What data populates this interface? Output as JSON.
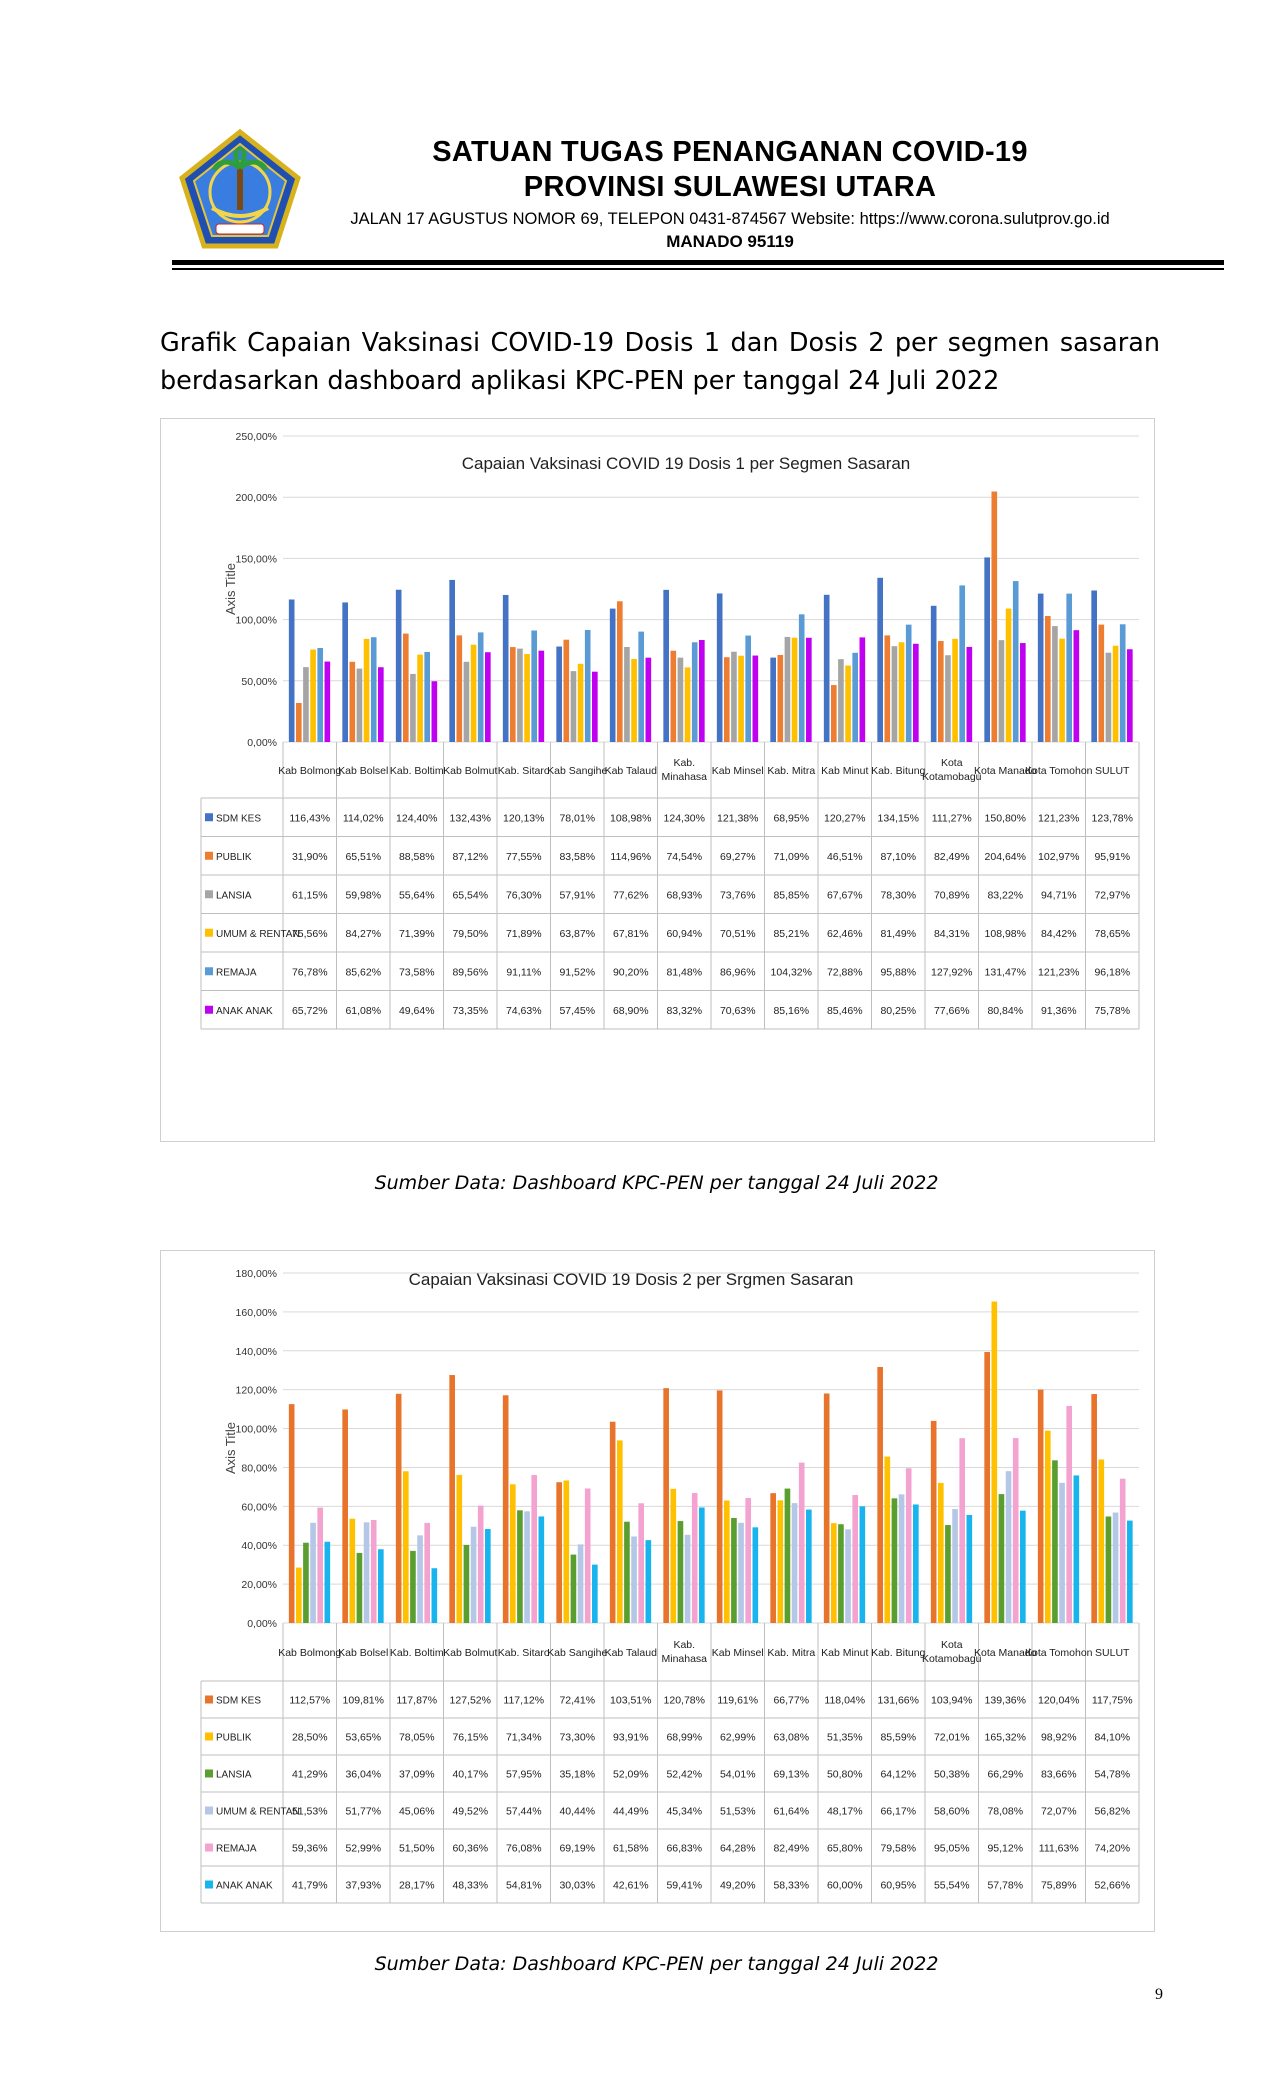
{
  "header": {
    "title_line1": "SATUAN TUGAS PENANGANAN COVID-19",
    "title_line2": "PROVINSI SULAWESI UTARA",
    "address": "JALAN 17 AGUSTUS NOMOR 69, TELEPON 0431-874567 Website: https://www.corona.sulutprov.go.id",
    "city": "MANADO  95119",
    "logo_text": "SULAWESI UTARA"
  },
  "intro": "Grafik Capaian Vaksinasi COVID-19 Dosis 1 dan Dosis 2 per segmen sasaran berdasarkan dashboard aplikasi KPC-PEN per tanggal 24 Juli 2022",
  "page_number": "9",
  "chart_data": [
    {
      "type": "bar",
      "title": "Capaian Vaksinasi COVID 19 Dosis 1 per Segmen Sasaran",
      "ylabel": "Axis Title",
      "ylim": [
        0,
        250
      ],
      "yticks": [
        "0,00%",
        "50,00%",
        "100,00%",
        "150,00%",
        "200,00%",
        "250,00%"
      ],
      "grid": true,
      "categories": [
        "Kab Bolmong",
        "Kab Bolsel",
        "Kab. Boltim",
        "Kab Bolmut",
        "Kab. Sitaro",
        "Kab Sangihe",
        "Kab Talaud",
        "Kab. Minahasa",
        "Kab Minsel",
        "Kab. Mitra",
        "Kab Minut",
        "Kab. Bitung",
        "Kota Kotamobagu",
        "Kota Manado",
        "Kota Tomohon",
        "SULUT"
      ],
      "colors": [
        "#4472C4",
        "#ED7D31",
        "#A5A5A5",
        "#FFC000",
        "#5B9BD5",
        "#C000F0"
      ],
      "series": [
        {
          "name": "SDM KES",
          "values": [
            116.43,
            114.02,
            124.4,
            132.43,
            120.13,
            78.01,
            108.98,
            124.3,
            121.38,
            68.95,
            120.27,
            134.15,
            111.27,
            150.8,
            121.23,
            123.78
          ],
          "labels": [
            "116,43%",
            "114,02%",
            "124,40%",
            "132,43%",
            "120,13%",
            "78,01%",
            "108,98%",
            "124,30%",
            "121,38%",
            "68,95%",
            "120,27%",
            "134,15%",
            "111,27%",
            "150,80%",
            "121,23%",
            "123,78%"
          ]
        },
        {
          "name": "PUBLIK",
          "values": [
            31.9,
            65.51,
            88.58,
            87.12,
            77.55,
            83.58,
            114.96,
            74.54,
            69.27,
            71.09,
            46.51,
            87.1,
            82.49,
            204.64,
            102.97,
            95.91
          ],
          "labels": [
            "31,90%",
            "65,51%",
            "88,58%",
            "87,12%",
            "77,55%",
            "83,58%",
            "114,96%",
            "74,54%",
            "69,27%",
            "71,09%",
            "46,51%",
            "87,10%",
            "82,49%",
            "204,64%",
            "102,97%",
            "95,91%"
          ]
        },
        {
          "name": "LANSIA",
          "values": [
            61.15,
            59.98,
            55.64,
            65.54,
            76.3,
            57.91,
            77.62,
            68.93,
            73.76,
            85.85,
            67.67,
            78.3,
            70.89,
            83.22,
            94.71,
            72.97
          ],
          "labels": [
            "61,15%",
            "59,98%",
            "55,64%",
            "65,54%",
            "76,30%",
            "57,91%",
            "77,62%",
            "68,93%",
            "73,76%",
            "85,85%",
            "67,67%",
            "78,30%",
            "70,89%",
            "83,22%",
            "94,71%",
            "72,97%"
          ]
        },
        {
          "name": "UMUM & RENTAN",
          "values": [
            75.56,
            84.27,
            71.39,
            79.5,
            71.89,
            63.87,
            67.81,
            60.94,
            70.51,
            85.21,
            62.46,
            81.49,
            84.31,
            108.98,
            84.42,
            78.65
          ],
          "labels": [
            "75,56%",
            "84,27%",
            "71,39%",
            "79,50%",
            "71,89%",
            "63,87%",
            "67,81%",
            "60,94%",
            "70,51%",
            "85,21%",
            "62,46%",
            "81,49%",
            "84,31%",
            "108,98%",
            "84,42%",
            "78,65%"
          ]
        },
        {
          "name": "REMAJA",
          "values": [
            76.78,
            85.62,
            73.58,
            89.56,
            91.11,
            91.52,
            90.2,
            81.48,
            86.96,
            104.32,
            72.88,
            95.88,
            127.92,
            131.47,
            121.23,
            96.18
          ],
          "labels": [
            "76,78%",
            "85,62%",
            "73,58%",
            "89,56%",
            "91,11%",
            "91,52%",
            "90,20%",
            "81,48%",
            "86,96%",
            "104,32%",
            "72,88%",
            "95,88%",
            "127,92%",
            "131,47%",
            "121,23%",
            "96,18%"
          ]
        },
        {
          "name": "ANAK ANAK",
          "values": [
            65.72,
            61.08,
            49.64,
            73.35,
            74.63,
            57.45,
            68.9,
            83.32,
            70.63,
            85.16,
            85.46,
            80.25,
            77.66,
            80.84,
            91.36,
            75.78
          ],
          "labels": [
            "65,72%",
            "61,08%",
            "49,64%",
            "73,35%",
            "74,63%",
            "57,45%",
            "68,90%",
            "83,32%",
            "70,63%",
            "85,16%",
            "85,46%",
            "80,25%",
            "77,66%",
            "80,84%",
            "91,36%",
            "75,78%"
          ]
        }
      ]
    },
    {
      "type": "bar",
      "title": "Capaian Vaksinasi COVID 19 Dosis 2 per Srgmen Sasaran",
      "ylabel": "Axis Title",
      "ylim": [
        0,
        180
      ],
      "yticks": [
        "0,00%",
        "20,00%",
        "40,00%",
        "60,00%",
        "80,00%",
        "100,00%",
        "120,00%",
        "140,00%",
        "160,00%",
        "180,00%"
      ],
      "grid": true,
      "categories": [
        "Kab Bolmong",
        "Kab Bolsel",
        "Kab. Boltim",
        "Kab Bolmut",
        "Kab. Sitaro",
        "Kab Sangihe",
        "Kab Talaud",
        "Kab. Minahasa",
        "Kab Minsel",
        "Kab. Mitra",
        "Kab Minut",
        "Kab. Bitung",
        "Kota Kotamobagu",
        "Kota Manado",
        "Kota Tomohon",
        "SULUT"
      ],
      "colors": [
        "#E8742C",
        "#FFC000",
        "#5A9E2F",
        "#B4C7E7",
        "#F4A2D0",
        "#18B4EE"
      ],
      "series": [
        {
          "name": "SDM KES",
          "values": [
            112.57,
            109.81,
            117.87,
            127.52,
            117.12,
            72.41,
            103.51,
            120.78,
            119.61,
            66.77,
            118.04,
            131.66,
            103.94,
            139.36,
            120.04,
            117.75
          ],
          "labels": [
            "112,57%",
            "109,81%",
            "117,87%",
            "127,52%",
            "117,12%",
            "72,41%",
            "103,51%",
            "120,78%",
            "119,61%",
            "66,77%",
            "118,04%",
            "131,66%",
            "103,94%",
            "139,36%",
            "120,04%",
            "117,75%"
          ]
        },
        {
          "name": "PUBLIK",
          "values": [
            28.5,
            53.65,
            78.05,
            76.15,
            71.34,
            73.3,
            93.91,
            68.99,
            62.99,
            63.08,
            51.35,
            85.59,
            72.01,
            165.32,
            98.92,
            84.1
          ],
          "labels": [
            "28,50%",
            "53,65%",
            "78,05%",
            "76,15%",
            "71,34%",
            "73,30%",
            "93,91%",
            "68,99%",
            "62,99%",
            "63,08%",
            "51,35%",
            "85,59%",
            "72,01%",
            "165,32%",
            "98,92%",
            "84,10%"
          ]
        },
        {
          "name": "LANSIA",
          "values": [
            41.29,
            36.04,
            37.09,
            40.17,
            57.95,
            35.18,
            52.09,
            52.42,
            54.01,
            69.13,
            50.8,
            64.12,
            50.38,
            66.29,
            83.66,
            54.78
          ],
          "labels": [
            "41,29%",
            "36,04%",
            "37,09%",
            "40,17%",
            "57,95%",
            "35,18%",
            "52,09%",
            "52,42%",
            "54,01%",
            "69,13%",
            "50,80%",
            "64,12%",
            "50,38%",
            "66,29%",
            "83,66%",
            "54,78%"
          ]
        },
        {
          "name": "UMUM & RENTAN",
          "values": [
            51.53,
            51.77,
            45.06,
            49.52,
            57.44,
            40.44,
            44.49,
            45.34,
            51.53,
            61.64,
            48.17,
            66.17,
            58.6,
            78.08,
            72.07,
            56.82
          ],
          "labels": [
            "51,53%",
            "51,77%",
            "45,06%",
            "49,52%",
            "57,44%",
            "40,44%",
            "44,49%",
            "45,34%",
            "51,53%",
            "61,64%",
            "48,17%",
            "66,17%",
            "58,60%",
            "78,08%",
            "72,07%",
            "56,82%"
          ]
        },
        {
          "name": "REMAJA",
          "values": [
            59.36,
            52.99,
            51.5,
            60.36,
            76.08,
            69.19,
            61.58,
            66.83,
            64.28,
            82.49,
            65.8,
            79.58,
            95.05,
            95.12,
            111.63,
            74.2
          ],
          "labels": [
            "59,36%",
            "52,99%",
            "51,50%",
            "60,36%",
            "76,08%",
            "69,19%",
            "61,58%",
            "66,83%",
            "64,28%",
            "82,49%",
            "65,80%",
            "79,58%",
            "95,05%",
            "95,12%",
            "111,63%",
            "74,20%"
          ]
        },
        {
          "name": "ANAK ANAK",
          "values": [
            41.79,
            37.93,
            28.17,
            48.33,
            54.81,
            30.03,
            42.61,
            59.41,
            49.2,
            58.33,
            60.0,
            60.95,
            55.54,
            57.78,
            75.89,
            52.66
          ],
          "labels": [
            "41,79%",
            "37,93%",
            "28,17%",
            "48,33%",
            "54,81%",
            "30,03%",
            "42,61%",
            "59,41%",
            "49,20%",
            "58,33%",
            "60,00%",
            "60,95%",
            "55,54%",
            "57,78%",
            "75,89%",
            "52,66%"
          ]
        }
      ]
    }
  ],
  "sources": [
    "Sumber Data: Dashboard KPC-PEN per tanggal 24 Juli 2022",
    "Sumber Data: Dashboard KPC-PEN per tanggal 24  Juli 2022"
  ]
}
